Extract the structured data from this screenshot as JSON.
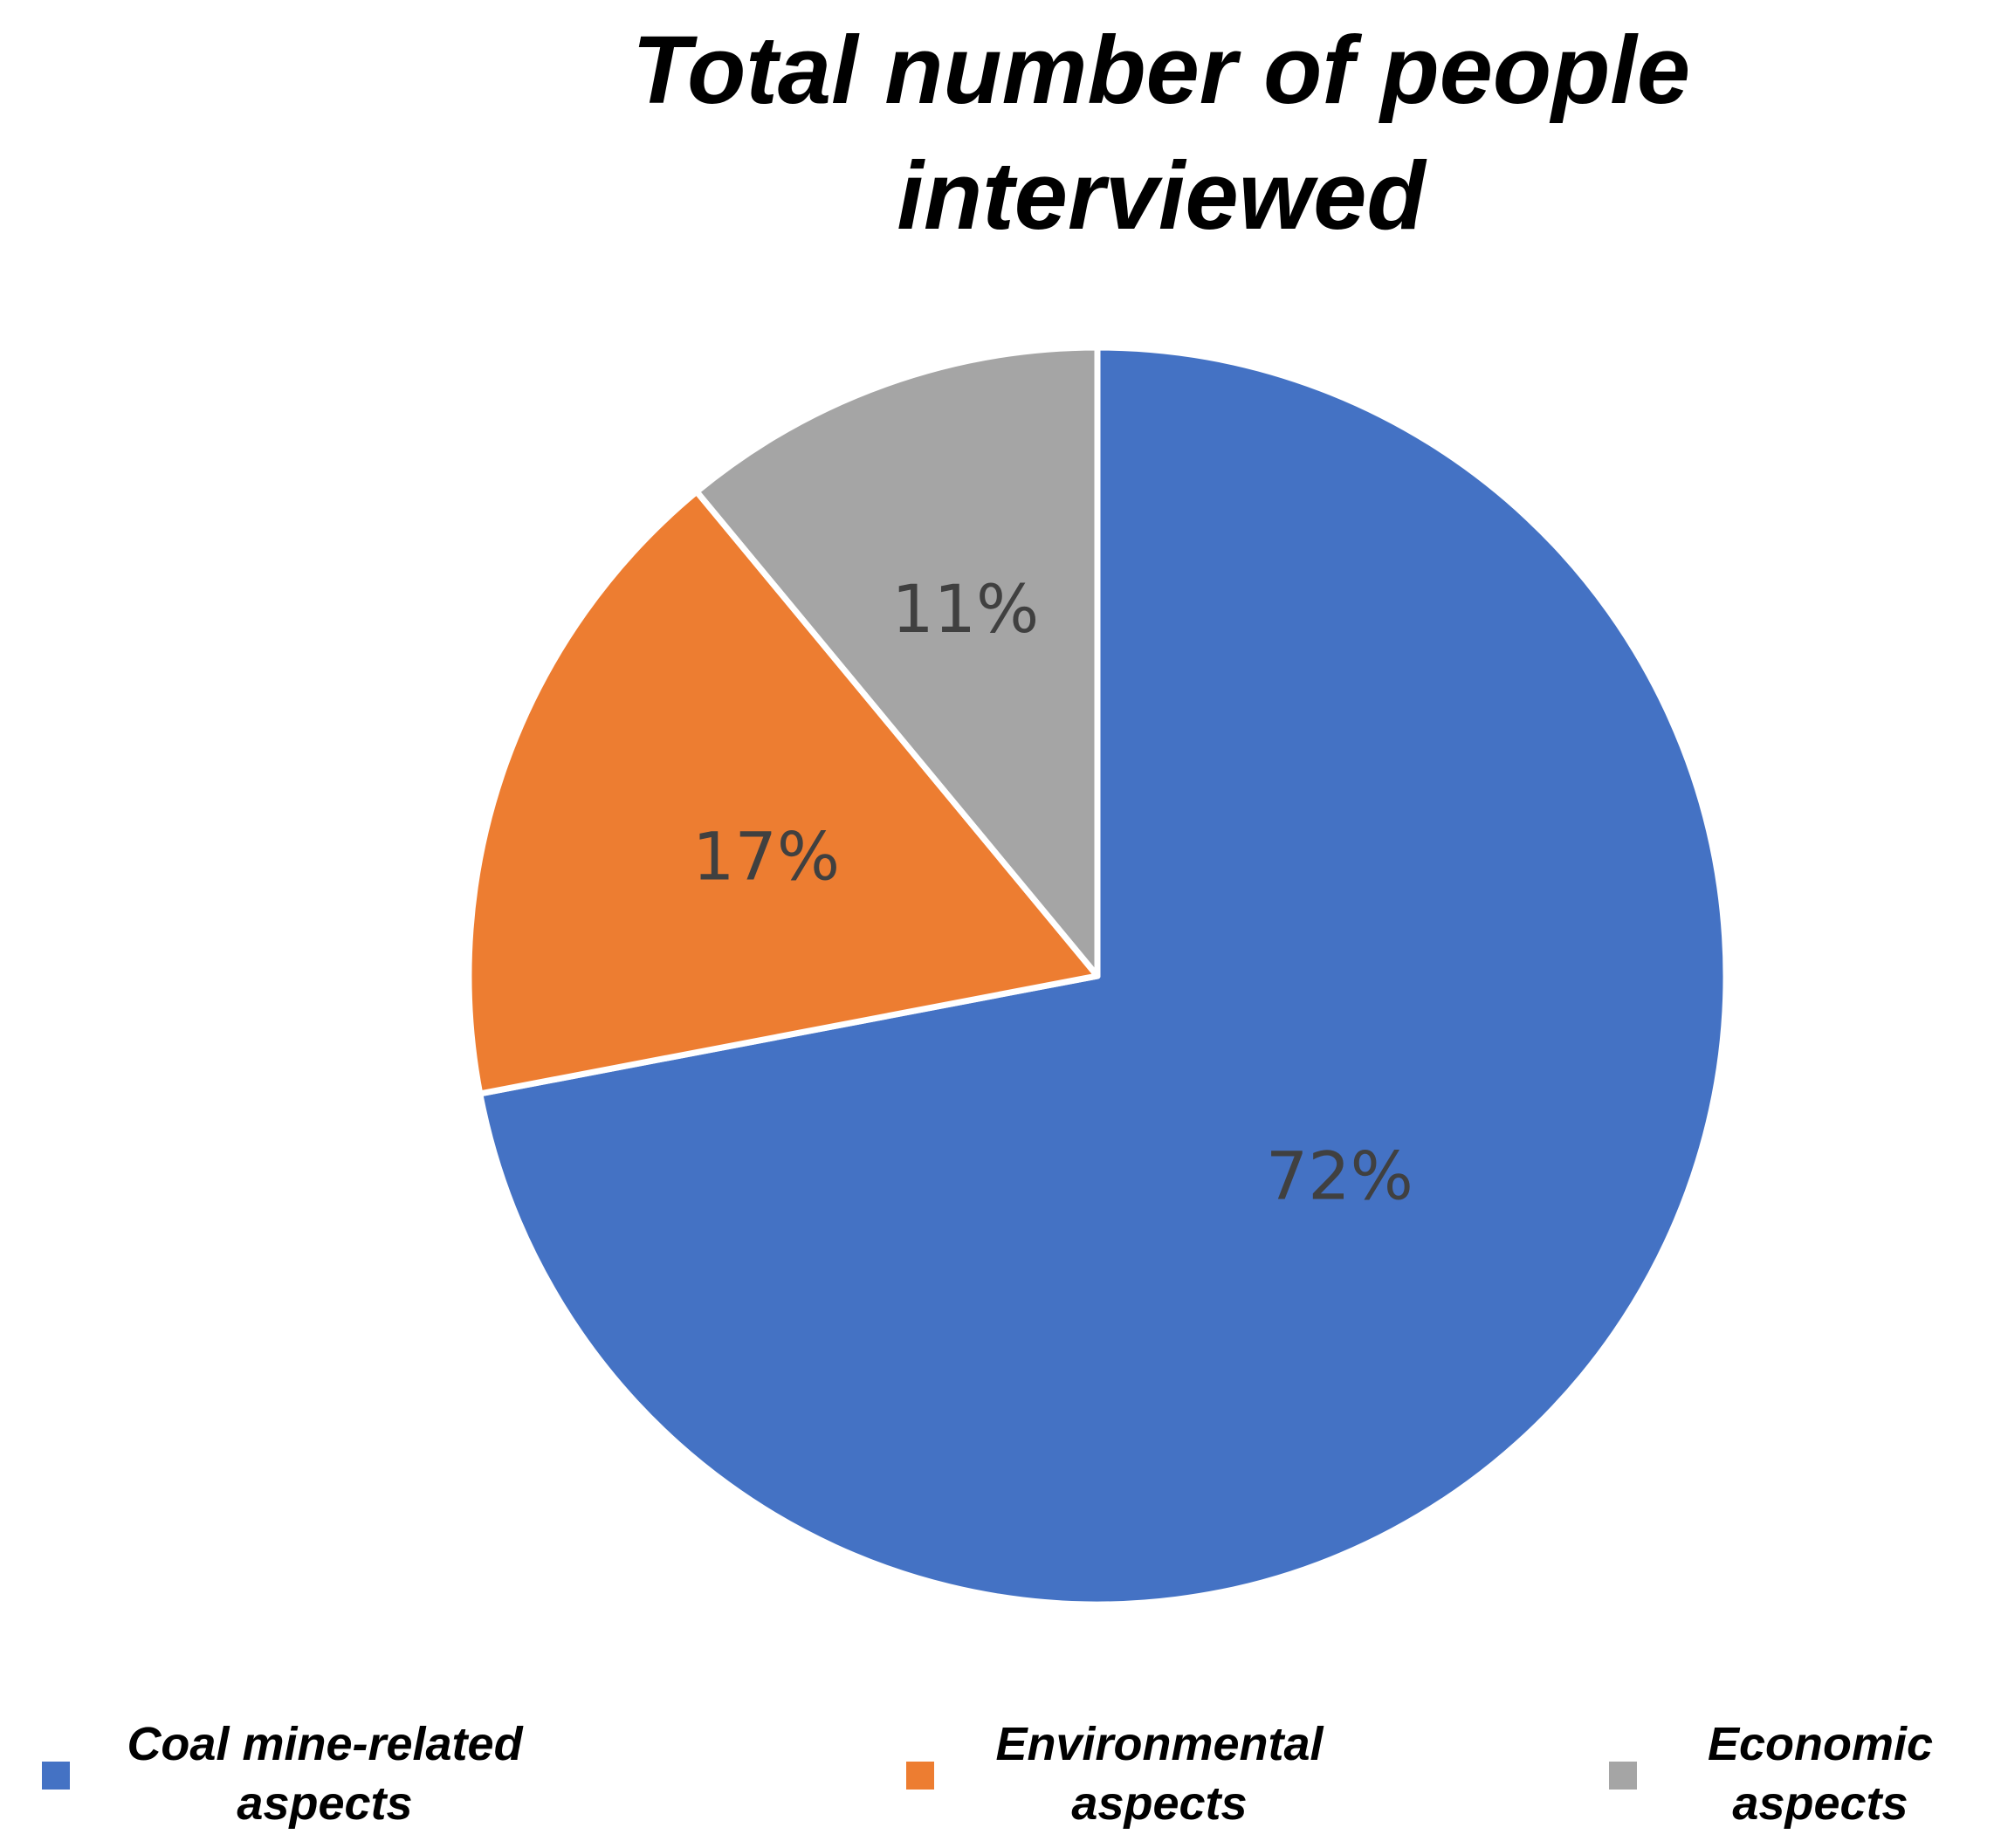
{
  "chart_data": {
    "type": "pie",
    "title": [
      "Total number of people",
      "interviewed"
    ],
    "slices": [
      {
        "label": [
          "Coal mine-related",
          "aspects"
        ],
        "value": 72,
        "display": "72%",
        "color": "#4472C4"
      },
      {
        "label": [
          "Environmental",
          "aspects"
        ],
        "value": 17,
        "display": "17%",
        "color": "#ED7D31"
      },
      {
        "label": [
          "Economic",
          "aspects"
        ],
        "value": 11,
        "display": "11%",
        "color": "#A5A5A5"
      }
    ],
    "start_angle_deg": 0,
    "direction": "clockwise",
    "legend_position": "bottom",
    "label_color": "#404040"
  }
}
